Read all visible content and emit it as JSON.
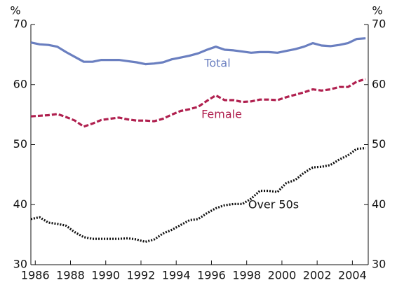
{
  "chart_data": {
    "type": "line",
    "ylabel": "%",
    "y2label": "%",
    "x": [
      1985.75,
      1986.25,
      1986.75,
      1987.25,
      1987.75,
      1988.25,
      1988.75,
      1989.25,
      1989.75,
      1990.25,
      1990.75,
      1991.25,
      1991.75,
      1992.25,
      1992.75,
      1993.25,
      1993.75,
      1994.25,
      1994.75,
      1995.25,
      1995.75,
      1996.25,
      1996.75,
      1997.25,
      1997.75,
      1998.25,
      1998.75,
      1999.25,
      1999.75,
      2000.25,
      2000.75,
      2001.25,
      2001.75,
      2002.25,
      2002.75,
      2003.25,
      2003.75,
      2004.25,
      2004.75
    ],
    "series": [
      {
        "name": "Total",
        "color": "#6a7fc0",
        "dash": "solid",
        "values": [
          67.0,
          66.7,
          66.6,
          66.3,
          65.4,
          64.6,
          63.8,
          63.8,
          64.1,
          64.1,
          64.1,
          63.9,
          63.7,
          63.4,
          63.5,
          63.7,
          64.2,
          64.5,
          64.8,
          65.2,
          65.8,
          66.3,
          65.8,
          65.7,
          65.5,
          65.3,
          65.4,
          65.4,
          65.3,
          65.6,
          65.9,
          66.3,
          66.9,
          66.5,
          66.4,
          66.6,
          66.9,
          67.6,
          67.7
        ]
      },
      {
        "name": "Female",
        "color": "#b0204f",
        "dash": "dashed",
        "values": [
          54.7,
          54.8,
          54.9,
          55.1,
          54.6,
          54.0,
          53.0,
          53.5,
          54.1,
          54.3,
          54.5,
          54.2,
          54.0,
          54.0,
          53.9,
          54.3,
          55.0,
          55.6,
          55.9,
          56.3,
          57.3,
          58.2,
          57.4,
          57.4,
          57.1,
          57.2,
          57.5,
          57.5,
          57.4,
          57.9,
          58.3,
          58.7,
          59.2,
          59.0,
          59.2,
          59.6,
          59.6,
          60.5,
          60.9
        ]
      },
      {
        "name": "Over 50s",
        "color": "#111111",
        "dash": "dotted",
        "values": [
          37.6,
          37.9,
          37.0,
          36.8,
          36.5,
          35.4,
          34.6,
          34.3,
          34.3,
          34.3,
          34.3,
          34.4,
          34.2,
          33.8,
          34.2,
          35.2,
          35.8,
          36.6,
          37.4,
          37.6,
          38.6,
          39.4,
          39.9,
          40.1,
          40.1,
          41.0,
          42.3,
          42.3,
          42.1,
          43.6,
          44.1,
          45.3,
          46.2,
          46.3,
          46.6,
          47.5,
          48.2,
          49.3,
          49.4
        ]
      }
    ],
    "xlim": [
      1985.75,
      2004.9
    ],
    "xticks": [
      1986,
      1988,
      1990,
      1992,
      1994,
      1996,
      1998,
      2000,
      2002,
      2004
    ],
    "ylim": [
      30,
      70
    ],
    "yticks": [
      30,
      40,
      50,
      60,
      70
    ],
    "y2lim": [
      30,
      70
    ],
    "y2ticks": [
      30,
      40,
      50,
      60,
      70
    ],
    "grid": false,
    "legend": "inline"
  }
}
